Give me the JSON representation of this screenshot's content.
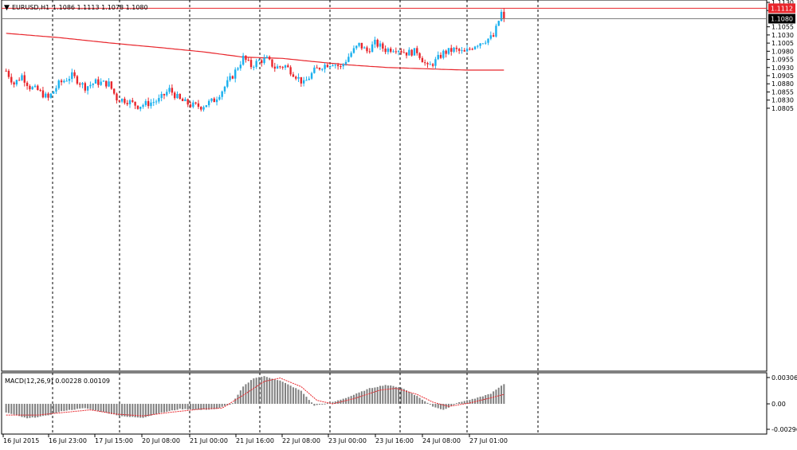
{
  "header": {
    "symbol_label": "EURUSD,H1",
    "ohlc_label": "1.1086 1.1113 1.1078 1.1080"
  },
  "indicator": {
    "label": "MACD(12,26,9) 0.00228 0.00109"
  },
  "colors": {
    "bull": "#1ab0ee",
    "bear": "#e8262c",
    "wick": "#000000",
    "ma_line": "#e8262c",
    "price_line_high": "#e8262c",
    "price_line_last": "#808080",
    "macd_hist": "#808080",
    "macd_signal": "#e8262c",
    "grid": "#000000"
  },
  "chart_data": [
    {
      "type": "candlestick",
      "symbol": "EURUSD",
      "timeframe": "H1",
      "ylim": [
        1.0005,
        1.113
      ],
      "y_ticks": [
        "1.1130",
        "1.1105",
        "1.1055",
        "1.1030",
        "1.1005",
        "1.0980",
        "1.0955",
        "1.0930",
        "1.0905",
        "1.0880",
        "1.0855",
        "1.0830",
        "1.0805"
      ],
      "x_ticks": [
        "16 Jul 2015",
        "16 Jul 23:00",
        "17 Jul 15:00",
        "20 Jul 08:00",
        "21 Jul 00:00",
        "21 Jul 16:00",
        "22 Jul 08:00",
        "23 Jul 00:00",
        "23 Jul 16:00",
        "24 Jul 08:00",
        "27 Jul 01:00"
      ],
      "price_labels": {
        "high_line": "1.1112",
        "last_price": "1.1080"
      },
      "high_line": 1.1112,
      "last_price": 1.108,
      "grid": true,
      "close_path": [
        [
          0,
          1.092
        ],
        [
          3,
          1.088
        ],
        [
          6,
          1.0905
        ],
        [
          9,
          1.087
        ],
        [
          12,
          1.086
        ],
        [
          16,
          1.0835
        ],
        [
          20,
          1.088
        ],
        [
          25,
          1.0905
        ],
        [
          30,
          1.087
        ],
        [
          34,
          1.0885
        ],
        [
          39,
          1.088
        ],
        [
          42,
          1.0835
        ],
        [
          46,
          1.0828
        ],
        [
          50,
          1.0812
        ],
        [
          54,
          1.082
        ],
        [
          58,
          1.083
        ],
        [
          62,
          1.0862
        ],
        [
          66,
          1.083
        ],
        [
          70,
          1.0815
        ],
        [
          74,
          1.081
        ],
        [
          79,
          1.083
        ],
        [
          82,
          1.086
        ],
        [
          86,
          1.0905
        ],
        [
          90,
          1.096
        ],
        [
          93,
          1.0935
        ],
        [
          96,
          1.095
        ],
        [
          99,
          1.0955
        ],
        [
          102,
          1.093
        ],
        [
          106,
          1.0935
        ],
        [
          110,
          1.0905
        ],
        [
          113,
          1.088
        ],
        [
          117,
          1.092
        ],
        [
          120,
          1.0935
        ],
        [
          124,
          1.0945
        ],
        [
          127,
          1.093
        ],
        [
          131,
          1.0975
        ],
        [
          134,
          1.1
        ],
        [
          137,
          1.098
        ],
        [
          140,
          1.1005
        ],
        [
          144,
          1.0985
        ],
        [
          148,
          1.099
        ],
        [
          152,
          1.0975
        ],
        [
          156,
          1.098
        ],
        [
          160,
          1.093
        ],
        [
          163,
          1.095
        ],
        [
          166,
          1.0975
        ],
        [
          170,
          1.0985
        ],
        [
          174,
          1.0975
        ],
        [
          178,
          1.1
        ],
        [
          182,
          1.1015
        ],
        [
          185,
          1.1025
        ],
        [
          188,
          1.1098
        ],
        [
          189,
          1.108
        ]
      ],
      "candles_count": 190,
      "ma_line": [
        [
          0,
          1.1035
        ],
        [
          20,
          1.1022
        ],
        [
          40,
          1.1005
        ],
        [
          60,
          1.099
        ],
        [
          75,
          1.0978
        ],
        [
          90,
          1.0962
        ],
        [
          105,
          1.0958
        ],
        [
          117,
          1.0948
        ],
        [
          130,
          1.0938
        ],
        [
          145,
          1.093
        ],
        [
          160,
          1.0926
        ],
        [
          175,
          1.0922
        ],
        [
          189,
          1.0922
        ]
      ]
    },
    {
      "type": "macd",
      "label": "MACD(12,26,9)",
      "values": {
        "macd": 0.00228,
        "signal": 0.00109
      },
      "ylim": [
        -0.00296,
        0.00306
      ],
      "y_ticks": [
        "0.00306",
        "0.00",
        "-0.00296"
      ],
      "hist_path": [
        [
          0,
          -0.001
        ],
        [
          8,
          -0.0017
        ],
        [
          15,
          -0.0014
        ],
        [
          22,
          -0.0008
        ],
        [
          30,
          -0.0005
        ],
        [
          36,
          -0.0009
        ],
        [
          45,
          -0.0015
        ],
        [
          52,
          -0.0016
        ],
        [
          58,
          -0.0011
        ],
        [
          66,
          -0.0006
        ],
        [
          74,
          -0.0007
        ],
        [
          80,
          -0.0006
        ],
        [
          86,
          0.0001
        ],
        [
          90,
          0.002
        ],
        [
          94,
          0.003
        ],
        [
          98,
          0.0032
        ],
        [
          104,
          0.0027
        ],
        [
          112,
          0.0015
        ],
        [
          117,
          -0.0002
        ],
        [
          123,
          0.0001
        ],
        [
          130,
          0.0008
        ],
        [
          138,
          0.0018
        ],
        [
          144,
          0.0022
        ],
        [
          150,
          0.0019
        ],
        [
          156,
          0.0009
        ],
        [
          162,
          -0.0003
        ],
        [
          166,
          -0.0007
        ],
        [
          172,
          0.0002
        ],
        [
          178,
          0.0006
        ],
        [
          184,
          0.0012
        ],
        [
          189,
          0.0023
        ]
      ],
      "signal_path": [
        [
          0,
          -0.0013
        ],
        [
          12,
          -0.0013
        ],
        [
          22,
          -0.001
        ],
        [
          32,
          -0.0007
        ],
        [
          42,
          -0.0012
        ],
        [
          52,
          -0.0014
        ],
        [
          62,
          -0.001
        ],
        [
          74,
          -0.0006
        ],
        [
          82,
          -0.0005
        ],
        [
          90,
          0.001
        ],
        [
          98,
          0.0026
        ],
        [
          104,
          0.003
        ],
        [
          112,
          0.002
        ],
        [
          118,
          0.0004
        ],
        [
          124,
          0.0
        ],
        [
          132,
          0.0006
        ],
        [
          142,
          0.0016
        ],
        [
          148,
          0.0018
        ],
        [
          156,
          0.0011
        ],
        [
          162,
          0.0002
        ],
        [
          168,
          -0.0003
        ],
        [
          176,
          0.0001
        ],
        [
          184,
          0.0007
        ],
        [
          189,
          0.0011
        ]
      ]
    }
  ]
}
